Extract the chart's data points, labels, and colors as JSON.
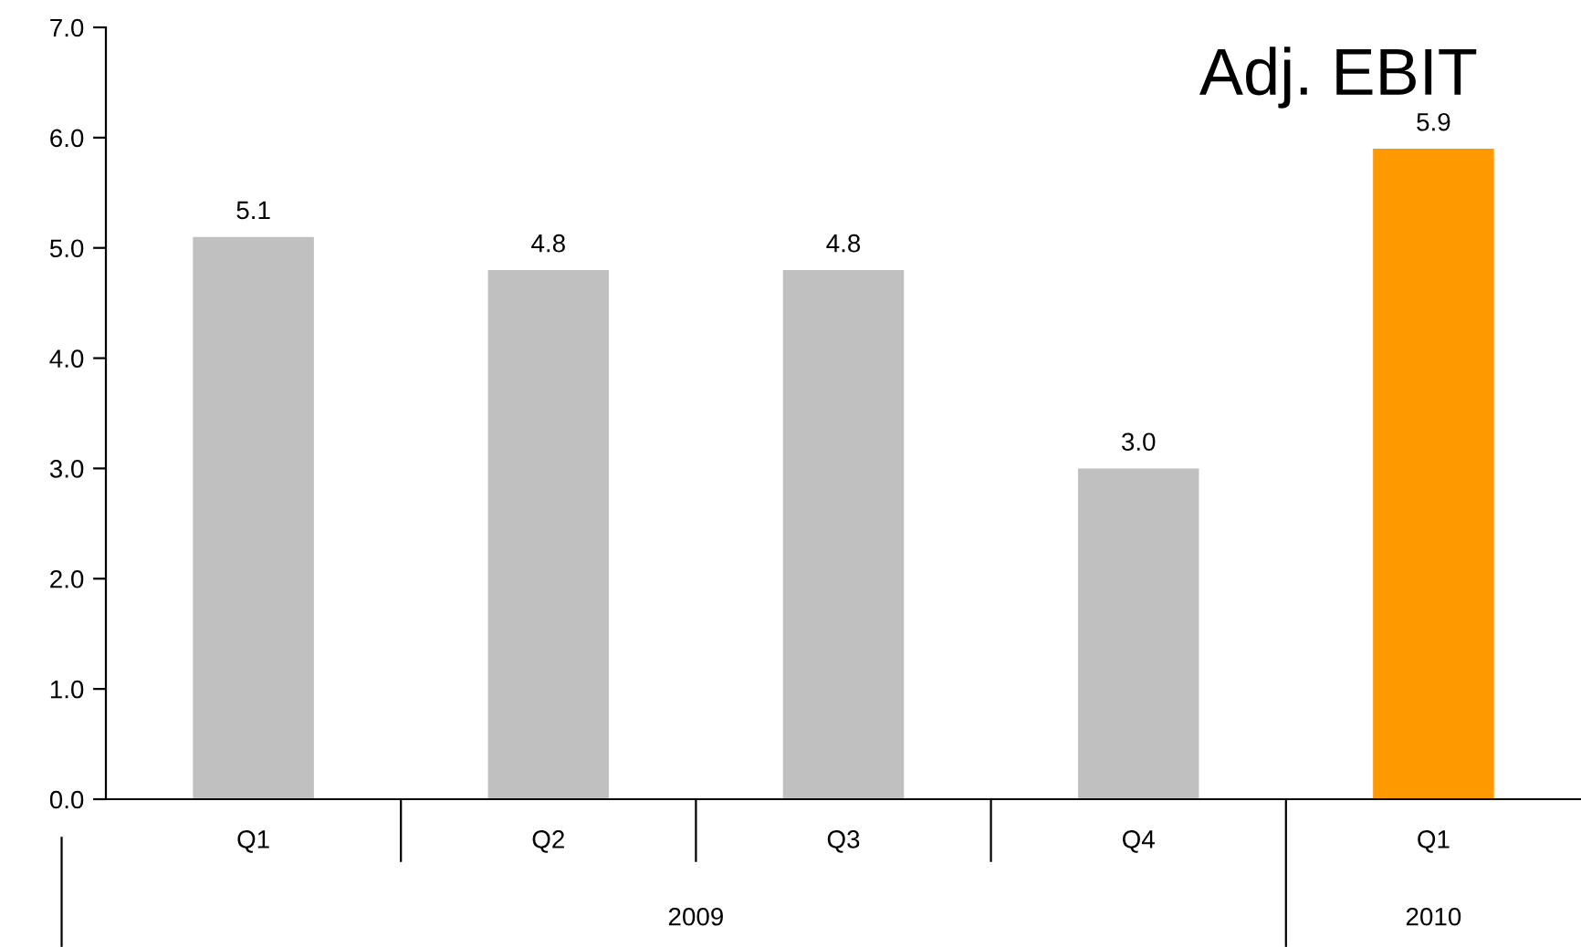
{
  "chart_data": {
    "type": "bar",
    "title": "Adj. EBIT",
    "categories": [
      "Q1",
      "Q2",
      "Q3",
      "Q4",
      "Q1"
    ],
    "values": [
      5.1,
      4.8,
      4.8,
      3.0,
      5.9
    ],
    "colors": [
      "#c0c0c0",
      "#c0c0c0",
      "#c0c0c0",
      "#c0c0c0",
      "#ff9900"
    ],
    "ylim": [
      0,
      7
    ],
    "yticks": [
      {
        "value": 0,
        "label": "0.0"
      },
      {
        "value": 1,
        "label": "1.0"
      },
      {
        "value": 2,
        "label": "2.0"
      },
      {
        "value": 3,
        "label": "3.0"
      },
      {
        "value": 4,
        "label": "4.0"
      },
      {
        "value": 5,
        "label": "5.0"
      },
      {
        "value": 6,
        "label": "6.0"
      },
      {
        "value": 7,
        "label": "7.0"
      }
    ],
    "value_labels": [
      "5.1",
      "4.8",
      "4.8",
      "3.0",
      "5.9"
    ],
    "grid": false,
    "legend": false,
    "annotations": [
      "2009",
      "2010"
    ]
  }
}
